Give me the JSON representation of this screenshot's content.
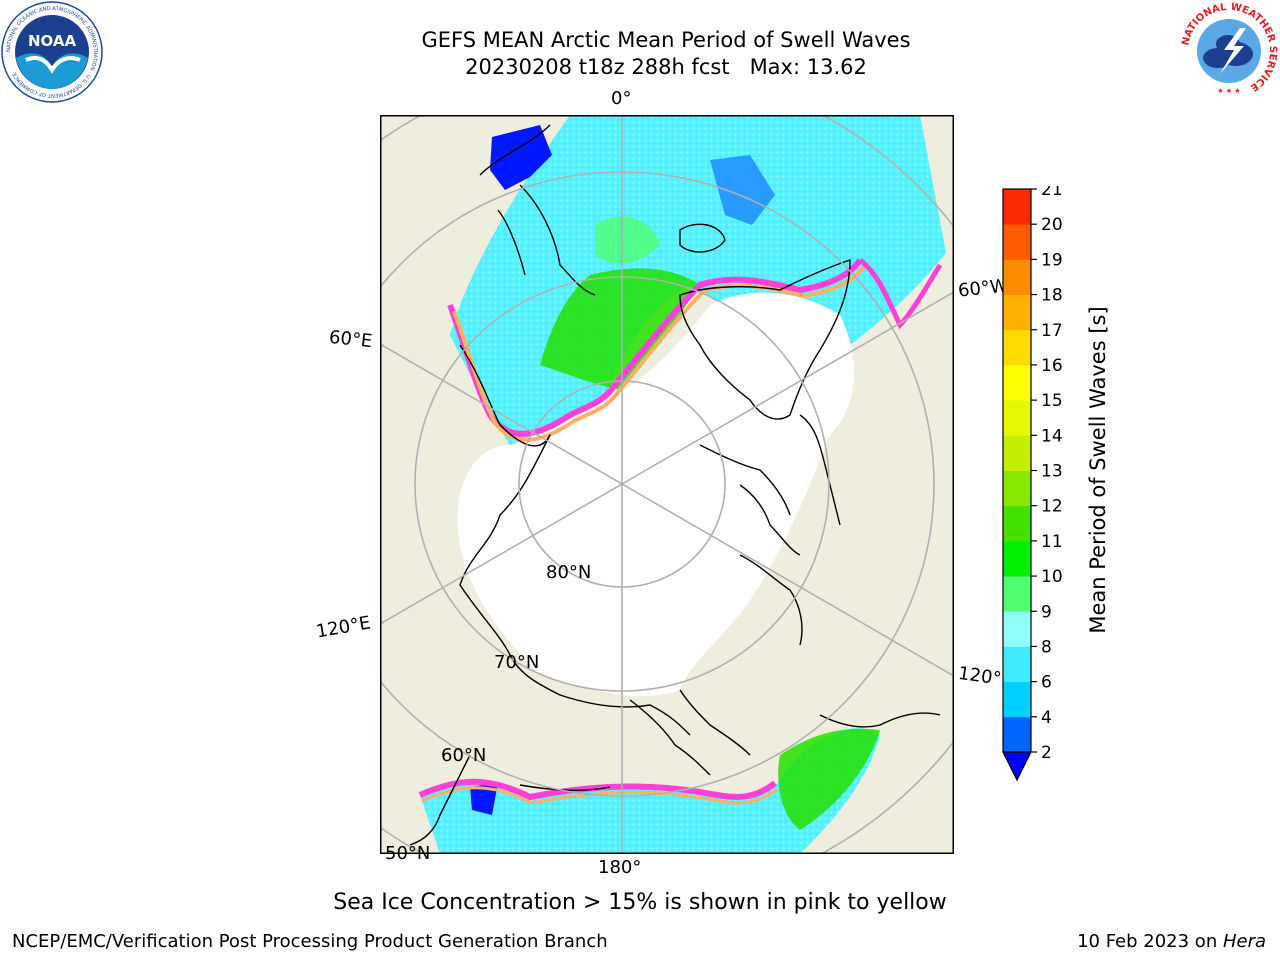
{
  "header": {
    "title_line1": "GEFS MEAN Arctic Mean Period of Swell Waves",
    "title_line2": "20230208 t18z 288h fcst   Max: 13.62"
  },
  "logos": {
    "noaa_text": "NOAA",
    "noaa_ring_text": "NATIONAL OCEANIC AND ATMOSPHERIC ADMINISTRATION · U.S. DEPARTMENT OF COMMERCE",
    "nws_ring_text": "NATIONAL WEATHER SERVICE"
  },
  "map": {
    "projection": "north-polar-stereographic",
    "land_color": "#efedde",
    "ice_color": "#ffffff",
    "graticule_color": "#b0b0b0",
    "longitude_labels": {
      "lon_0": "0°",
      "lon_60e": "60°E",
      "lon_60w": "60°W",
      "lon_120e": "120°E",
      "lon_120w": "120°W",
      "lon_180": "180°"
    },
    "latitude_labels": {
      "lat_80": "80°N",
      "lat_70": "70°N",
      "lat_60": "60°N",
      "lat_50": "50°N"
    }
  },
  "colorbar": {
    "label": "Mean Period of Swell Waves [s]",
    "ticks": [
      "2",
      "4",
      "6",
      "8",
      "9",
      "10",
      "11",
      "12",
      "13",
      "14",
      "15",
      "16",
      "17",
      "18",
      "19",
      "20",
      "21"
    ],
    "colors": [
      "#0064ff",
      "#00d0ff",
      "#40eaff",
      "#90ffff",
      "#50ff70",
      "#00ee00",
      "#44e000",
      "#88e800",
      "#c4f000",
      "#e8f800",
      "#ffff00",
      "#ffdc00",
      "#ffb000",
      "#ff8a00",
      "#ff5c00",
      "#ff2a00"
    ],
    "under_color": "#0000ff"
  },
  "footer": {
    "note": "Sea Ice Concentration > 15% is shown in pink to yellow",
    "branch": "NCEP/EMC/Verification Post Processing Product Generation Branch",
    "date_prefix": "10 Feb 2023 on ",
    "machine": "Hera"
  }
}
